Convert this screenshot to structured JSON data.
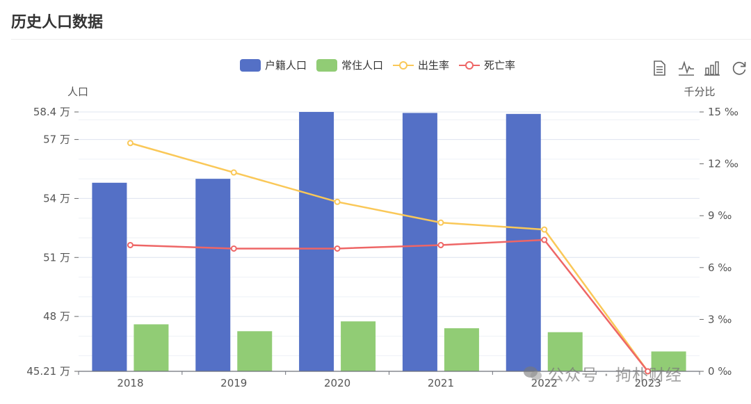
{
  "title": "历史人口数据",
  "toolbox": [
    "data-view-icon",
    "line-chart-icon",
    "bar-chart-icon",
    "restore-icon"
  ],
  "watermark": "公众号 · 拘朴财经",
  "colors": {
    "hukou": "#5470c6",
    "resident": "#91cc75",
    "birth": "#fac858",
    "death": "#ee6666"
  },
  "chart_data": {
    "type": "bar",
    "categories": [
      "2018",
      "2019",
      "2020",
      "2021",
      "2022",
      "2023"
    ],
    "series": [
      {
        "name": "户籍人口",
        "type": "bar",
        "yAxis": 0,
        "values": [
          54.8,
          55.0,
          58.4,
          58.35,
          58.3,
          null
        ]
      },
      {
        "name": "常住人口",
        "type": "bar",
        "yAxis": 0,
        "values": [
          47.6,
          47.25,
          47.75,
          47.4,
          47.2,
          46.22
        ]
      },
      {
        "name": "出生率",
        "type": "line",
        "yAxis": 1,
        "values": [
          13.2,
          11.5,
          9.8,
          8.6,
          8.2,
          0
        ]
      },
      {
        "name": "死亡率",
        "type": "line",
        "yAxis": 1,
        "values": [
          7.3,
          7.1,
          7.1,
          7.3,
          7.6,
          0
        ]
      }
    ],
    "y_left": {
      "label": "人口",
      "min": 45.21,
      "max": 58.4,
      "ticks": [
        45.21,
        48,
        51,
        54,
        57,
        58.4
      ],
      "tick_labels": [
        "45.21 万",
        "48 万",
        "51 万",
        "54 万",
        "57 万",
        "58.4 万"
      ]
    },
    "y_right": {
      "label": "千分比",
      "min": 0,
      "max": 15,
      "ticks": [
        0,
        3,
        6,
        9,
        12,
        15
      ],
      "tick_labels": [
        "0 ‰",
        "3 ‰",
        "6 ‰",
        "9 ‰",
        "12 ‰",
        "15 ‰"
      ]
    },
    "legend_position": "top-center",
    "grid": true
  }
}
